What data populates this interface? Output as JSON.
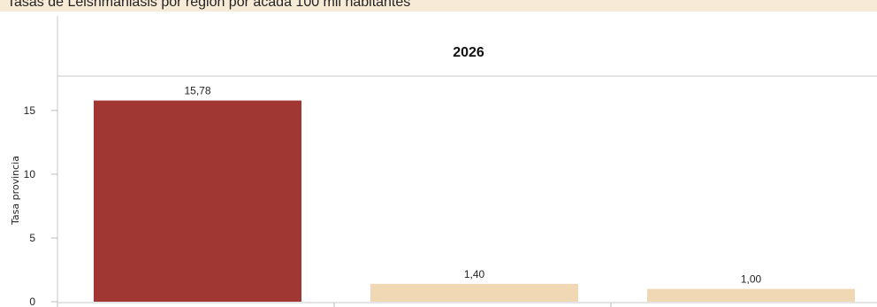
{
  "header": {
    "title": "Tasas de Leishmaniasis por región por acada 100 mil habitantes"
  },
  "chart_data": {
    "type": "bar",
    "panel": "2026",
    "title": "Tasas de Leishmaniasis por región por acada 100 mil habitantes",
    "ylabel": "Tasa provincia",
    "xlabel": "",
    "ylim": [
      0,
      18
    ],
    "yticks": [
      0,
      5,
      10,
      15
    ],
    "categories": [
      "",
      "",
      ""
    ],
    "values": [
      15.78,
      1.4,
      1.0
    ],
    "value_labels": [
      "15,78",
      "1,40",
      "1,00"
    ],
    "colors": [
      "#a13733",
      "#efd8b3",
      "#efd8b3"
    ],
    "grid": false
  }
}
